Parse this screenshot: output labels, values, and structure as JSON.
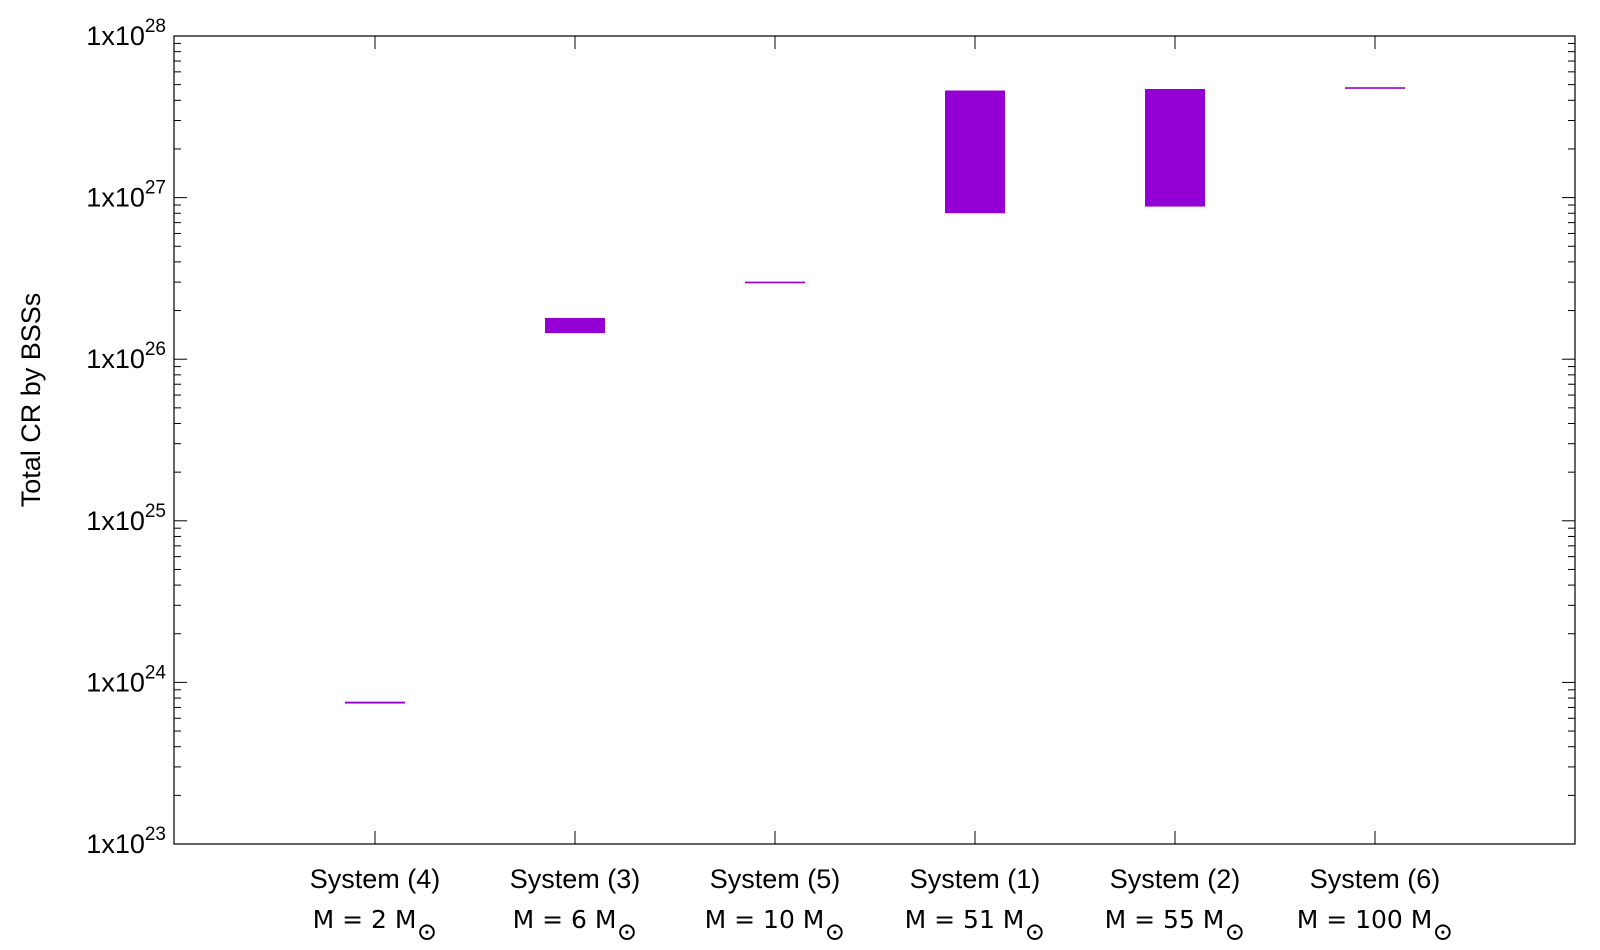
{
  "chart_data": {
    "type": "bar",
    "title": "",
    "ylabel": "Total CR by BSSs",
    "xlabel": "",
    "yscale": "log",
    "ylim": [
      1e+23,
      1e+28
    ],
    "grid": false,
    "y_tick_labels": [
      {
        "base": "1x10",
        "exp": "23"
      },
      {
        "base": "1x10",
        "exp": "24"
      },
      {
        "base": "1x10",
        "exp": "25"
      },
      {
        "base": "1x10",
        "exp": "26"
      },
      {
        "base": "1x10",
        "exp": "27"
      },
      {
        "base": "1x10",
        "exp": "28"
      }
    ],
    "categories": [
      {
        "name": "System (4)",
        "mass_prefix": "M = 2 M",
        "mass_sub": "⊙",
        "low": 7.4e+23,
        "high": 7.6e+23
      },
      {
        "name": "System (3)",
        "mass_prefix": "M = 6 M",
        "mass_sub": "⊙",
        "low": 1.45e+26,
        "high": 1.8e+26
      },
      {
        "name": "System (5)",
        "mass_prefix": "M = 10 M",
        "mass_sub": "⊙",
        "low": 2.95e+26,
        "high": 3.02e+26
      },
      {
        "name": "System (1)",
        "mass_prefix": "M = 51 M",
        "mass_sub": "⊙",
        "low": 8e+26,
        "high": 4.6e+27
      },
      {
        "name": "System (2)",
        "mass_prefix": "M = 55 M",
        "mass_sub": "⊙",
        "low": 8.8e+26,
        "high": 4.7e+27
      },
      {
        "name": "System (6)",
        "mass_prefix": "M = 100 M",
        "mass_sub": "⊙",
        "low": 4.75e+27,
        "high": 4.82e+27
      }
    ],
    "bar_color": "#9400d3"
  }
}
